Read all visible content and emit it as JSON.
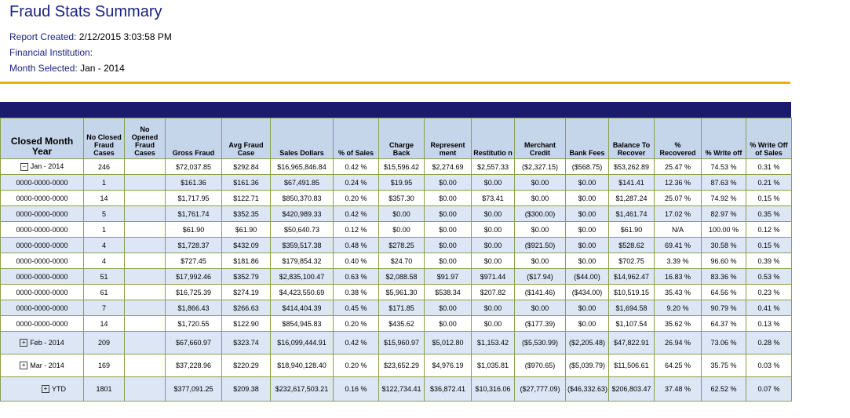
{
  "header": {
    "title": "Fraud Stats Summary",
    "report_created_label": "Report Created:",
    "report_created_value": "2/12/2015 3:03:58 PM",
    "financial_institution_label": "Financial Institution:",
    "financial_institution_value": "",
    "month_selected_label": "Month Selected:",
    "month_selected_value": "Jan - 2014"
  },
  "accent_color": "#f0b000",
  "band_color": "#1a1a6e",
  "columns": [
    "Closed Month Year",
    "No Closed Fraud Cases",
    "No Opened Fraud Cases",
    "Gross Fraud",
    "Avg Fraud Case",
    "Sales Dollars",
    "% of Sales",
    "Charge Back",
    "Represent ment",
    "Restitutio n",
    "Merchant Credit",
    "Bank Fees",
    "Balance To Recover",
    "% Recovered",
    "% Write off",
    "% Write Off of Sales"
  ],
  "rows": [
    {
      "group": true,
      "toggle": "−",
      "label": "Jan - 2014",
      "cells": [
        "246",
        "",
        "$72,037.85",
        "$292.84",
        "$16,965,846.84",
        "0.42 %",
        "$15,596.42",
        "$2,274.69",
        "$2,557.33",
        "($2,327.15)",
        "($568.75)",
        "$53,262.89",
        "25.47 %",
        "74.53 %",
        "0.31 %"
      ]
    },
    {
      "group": false,
      "label": "0000-0000-0000",
      "cells": [
        "1",
        "",
        "$161.36",
        "$161.36",
        "$67,491.85",
        "0.24 %",
        "$19.95",
        "$0.00",
        "$0.00",
        "$0.00",
        "$0.00",
        "$141.41",
        "12.36 %",
        "87.63 %",
        "0.21 %"
      ]
    },
    {
      "group": false,
      "label": "0000-0000-0000",
      "cells": [
        "14",
        "",
        "$1,717.95",
        "$122.71",
        "$850,370.83",
        "0.20 %",
        "$357.30",
        "$0.00",
        "$73.41",
        "$0.00",
        "$0.00",
        "$1,287.24",
        "25.07 %",
        "74.92 %",
        "0.15 %"
      ]
    },
    {
      "group": false,
      "label": "0000-0000-0000",
      "cells": [
        "5",
        "",
        "$1,761.74",
        "$352.35",
        "$420,989.33",
        "0.42 %",
        "$0.00",
        "$0.00",
        "$0.00",
        "($300.00)",
        "$0.00",
        "$1,461.74",
        "17.02 %",
        "82.97 %",
        "0.35 %"
      ]
    },
    {
      "group": false,
      "label": "0000-0000-0000",
      "cells": [
        "1",
        "",
        "$61.90",
        "$61.90",
        "$50,640.73",
        "0.12 %",
        "$0.00",
        "$0.00",
        "$0.00",
        "$0.00",
        "$0.00",
        "$61.90",
        "N/A",
        "100.00 %",
        "0.12 %"
      ]
    },
    {
      "group": false,
      "label": "0000-0000-0000",
      "cells": [
        "4",
        "",
        "$1,728.37",
        "$432.09",
        "$359,517.38",
        "0.48 %",
        "$278.25",
        "$0.00",
        "$0.00",
        "($921.50)",
        "$0.00",
        "$528.62",
        "69.41 %",
        "30.58 %",
        "0.15 %"
      ]
    },
    {
      "group": false,
      "label": "0000-0000-0000",
      "cells": [
        "4",
        "",
        "$727.45",
        "$181.86",
        "$179,854.32",
        "0.40 %",
        "$24.70",
        "$0.00",
        "$0.00",
        "$0.00",
        "$0.00",
        "$702.75",
        "3.39 %",
        "96.60 %",
        "0.39 %"
      ]
    },
    {
      "group": false,
      "label": "0000-0000-0000",
      "cells": [
        "51",
        "",
        "$17,992.46",
        "$352.79",
        "$2,835,100.47",
        "0.63 %",
        "$2,088.58",
        "$91.97",
        "$971.44",
        "($17.94)",
        "($44.00)",
        "$14,962.47",
        "16.83 %",
        "83.36 %",
        "0.53 %"
      ]
    },
    {
      "group": false,
      "label": "0000-0000-0000",
      "cells": [
        "61",
        "",
        "$16,725.39",
        "$274.19",
        "$4,423,550.69",
        "0.38 %",
        "$5,961.30",
        "$538.34",
        "$207.82",
        "($141.46)",
        "($434.00)",
        "$10,519.15",
        "35.43 %",
        "64.56 %",
        "0.23 %"
      ]
    },
    {
      "group": false,
      "label": "0000-0000-0000",
      "cells": [
        "7",
        "",
        "$1,866.43",
        "$266.63",
        "$414,404.39",
        "0.45 %",
        "$171.85",
        "$0.00",
        "$0.00",
        "$0.00",
        "$0.00",
        "$1,694.58",
        "9.20 %",
        "90.79 %",
        "0.41 %"
      ]
    },
    {
      "group": false,
      "label": "0000-0000-0000",
      "cells": [
        "14",
        "",
        "$1,720.55",
        "$122.90",
        "$854,945.83",
        "0.20 %",
        "$435.62",
        "$0.00",
        "$0.00",
        "($177.39)",
        "$0.00",
        "$1,107.54",
        "35.62 %",
        "64.37 %",
        "0.13 %"
      ]
    },
    {
      "group": true,
      "toggle": "+",
      "label": "Feb - 2014",
      "cells": [
        "209",
        "",
        "$67,660.97",
        "$323.74",
        "$16,099,444.91",
        "0.42 %",
        "$15,960.97",
        "$5,012.80",
        "$1,153.42",
        "($5,530.99)",
        "($2,205.48)",
        "$47,822.91",
        "26.94 %",
        "73.06 %",
        "0.28 %"
      ]
    },
    {
      "group": true,
      "toggle": "+",
      "label": "Mar - 2014",
      "cells": [
        "169",
        "",
        "$37,228.96",
        "$220.29",
        "$18,940,128.40",
        "0.20 %",
        "$23,652.29",
        "$4,976.19",
        "$1,035.81",
        "($970.65)",
        "($5,039.79)",
        "$11,506.61",
        "64.25 %",
        "35.75 %",
        "0.03 %"
      ]
    },
    {
      "group": true,
      "toggle": "+",
      "label": "YTD",
      "cells": [
        "1801",
        "",
        "$377,091.25",
        "$209.38",
        "$232,617,503.21",
        "0.16 %",
        "$122,734.41",
        "$36,872.41",
        "$10,316.06",
        "($27,777.09)",
        "($46,332.63)",
        "$206,803.47",
        "37.48 %",
        "62.52 %",
        "0.07 %"
      ]
    }
  ]
}
